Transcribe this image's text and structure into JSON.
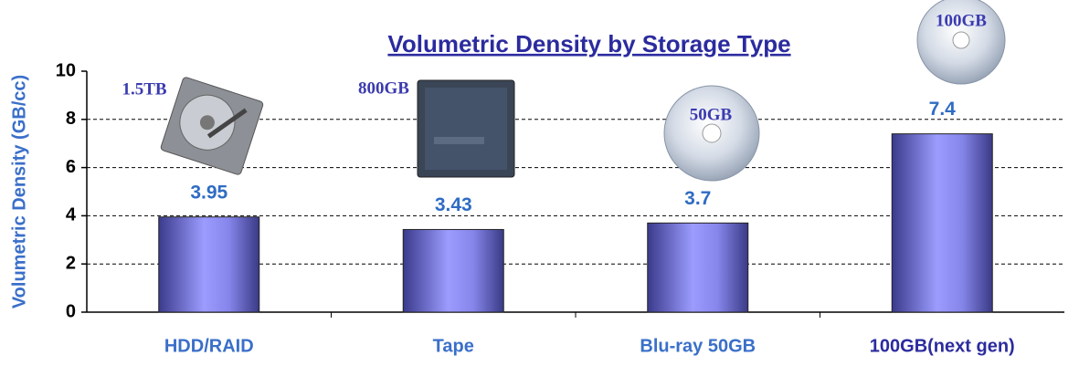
{
  "chart_data": {
    "type": "bar",
    "title": "Volumetric Density by Storage Type",
    "y_label": "Volumetric Density (GB/cc)",
    "categories": [
      "HDD/RAID",
      "Tape",
      "Blu-ray 50GB",
      "100GB(next gen)"
    ],
    "values": [
      3.95,
      3.43,
      3.7,
      7.4
    ],
    "annotations": [
      "1.5TB",
      "800GB",
      "50GB",
      "100GB"
    ],
    "color": "#8f8fff",
    "ylim": [
      0,
      10
    ],
    "yticks": [
      0,
      2,
      4,
      6,
      8,
      10
    ],
    "grid": true
  }
}
